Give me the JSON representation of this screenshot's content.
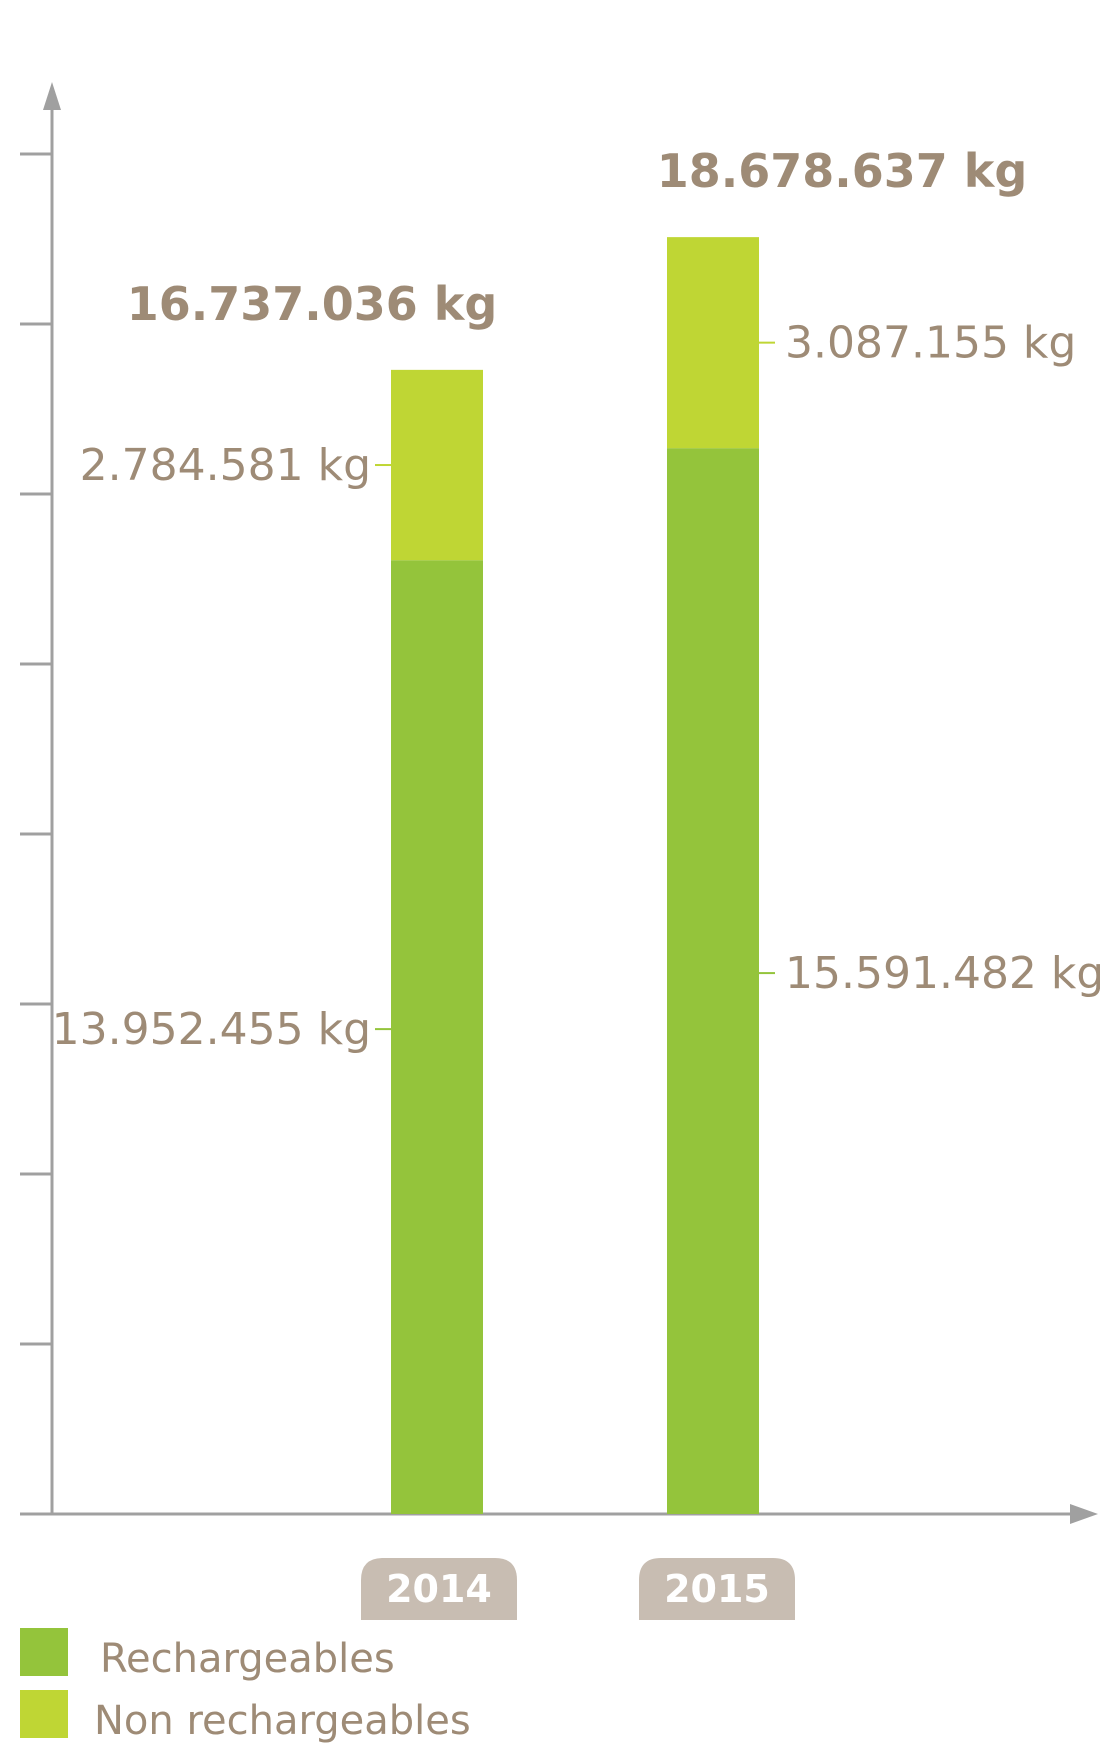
{
  "chart_data": {
    "type": "bar",
    "stacked": true,
    "categories": [
      "2014",
      "2015"
    ],
    "series": [
      {
        "name": "Rechargeables",
        "color": "#94c43b",
        "values": [
          13952455,
          15591482
        ],
        "labels": [
          "13.952.455 kg",
          "15.591.482 kg"
        ]
      },
      {
        "name": "Non rechargeables",
        "color": "#bfd634",
        "values": [
          2784581,
          3087155
        ],
        "labels": [
          "2.784.581 kg",
          "3.087.155 kg"
        ]
      }
    ],
    "totals": [
      16737036,
      18678637
    ],
    "total_labels": [
      "16.737.036 kg",
      "18.678.637 kg"
    ],
    "ylim": [
      0,
      20000000
    ],
    "y_ticks": 8,
    "grid": false,
    "legend_position": "bottom-left",
    "axis_color": "#a0a0a0",
    "text_color": "#9e8b76",
    "year_badge_color": "#c8bdb2"
  }
}
